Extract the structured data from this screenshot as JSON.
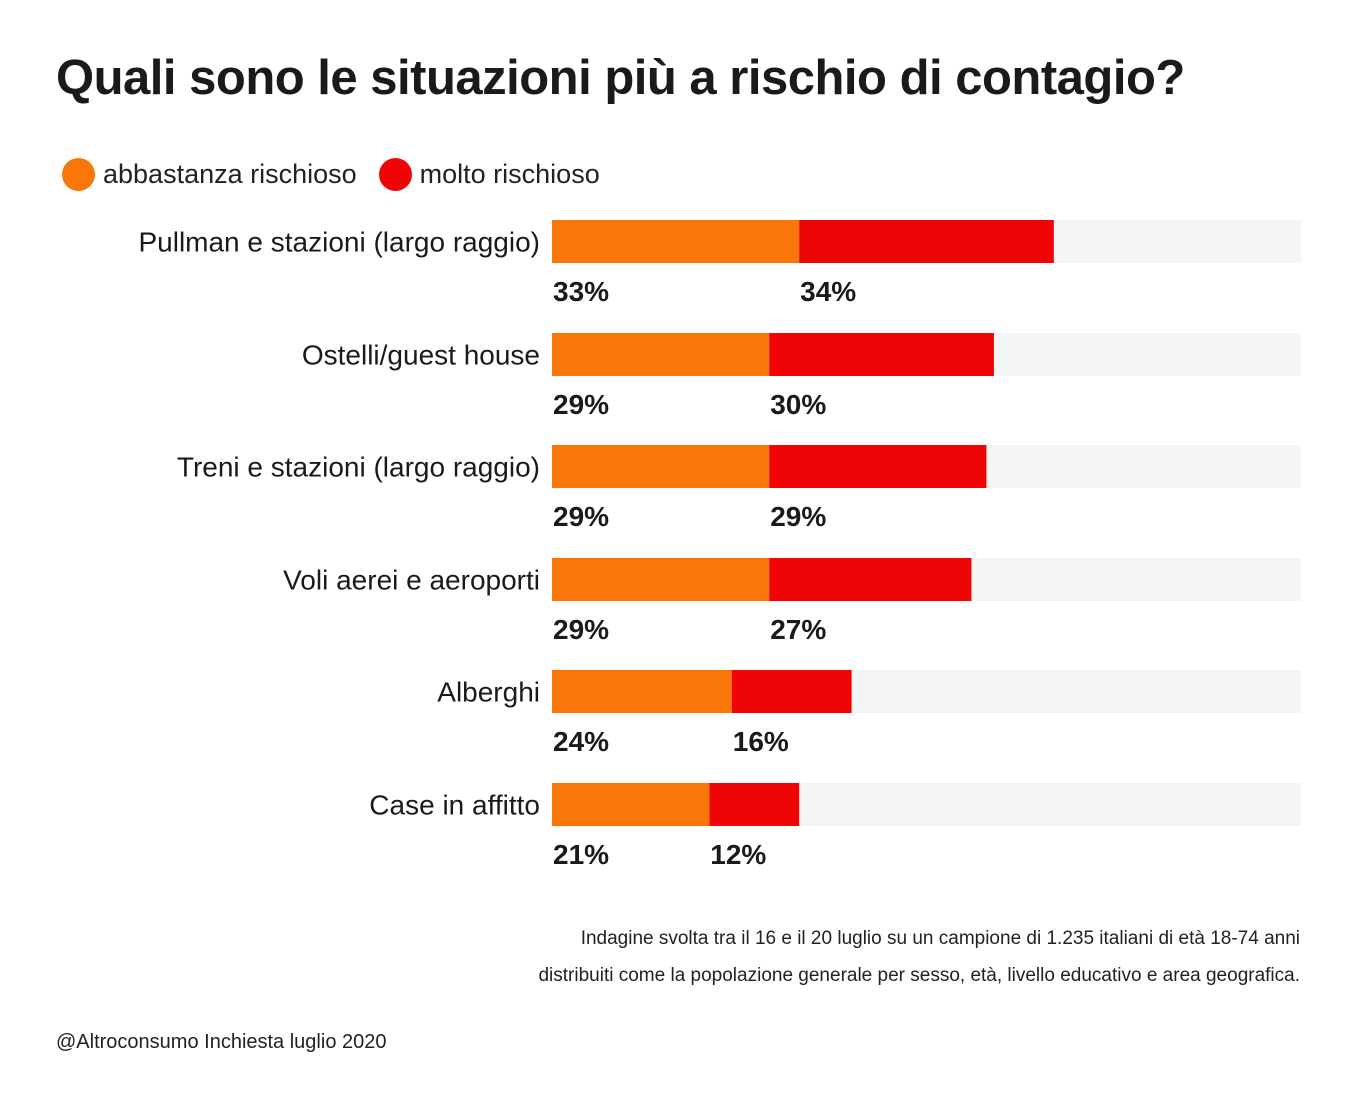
{
  "chart_data": {
    "type": "bar",
    "orientation": "horizontal",
    "stacked": true,
    "title": "Quali sono le situazioni più a rischio di contagio?",
    "categories": [
      "Pullman e stazioni (largo raggio)",
      "Ostelli/guest house",
      "Treni e stazioni (largo raggio)",
      "Voli aerei e aeroporti",
      "Alberghi",
      "Case in affitto"
    ],
    "series": [
      {
        "name": "abbastanza rischioso",
        "color": "#f97708",
        "values": [
          33,
          29,
          29,
          29,
          24,
          21
        ],
        "labels": [
          "33%",
          "29%",
          "29%",
          "29%",
          "24%",
          "21%"
        ]
      },
      {
        "name": "molto rischioso",
        "color": "#ef0505",
        "values": [
          34,
          30,
          29,
          27,
          16,
          12
        ],
        "labels": [
          "34%",
          "30%",
          "29%",
          "27%",
          "16%",
          "12%"
        ]
      }
    ],
    "xlim": [
      0,
      100
    ],
    "track_color": "#f4f5f5",
    "legend_position": "top-left"
  },
  "note": {
    "line1": "Indagine svolta tra il 16 e il 20 luglio su un campione di 1.235 italiani di età 18-74 anni",
    "line2": "distribuiti come la popolazione generale per sesso, età, livello educativo e area geografica."
  },
  "source": "@Altroconsumo Inchiesta luglio 2020"
}
